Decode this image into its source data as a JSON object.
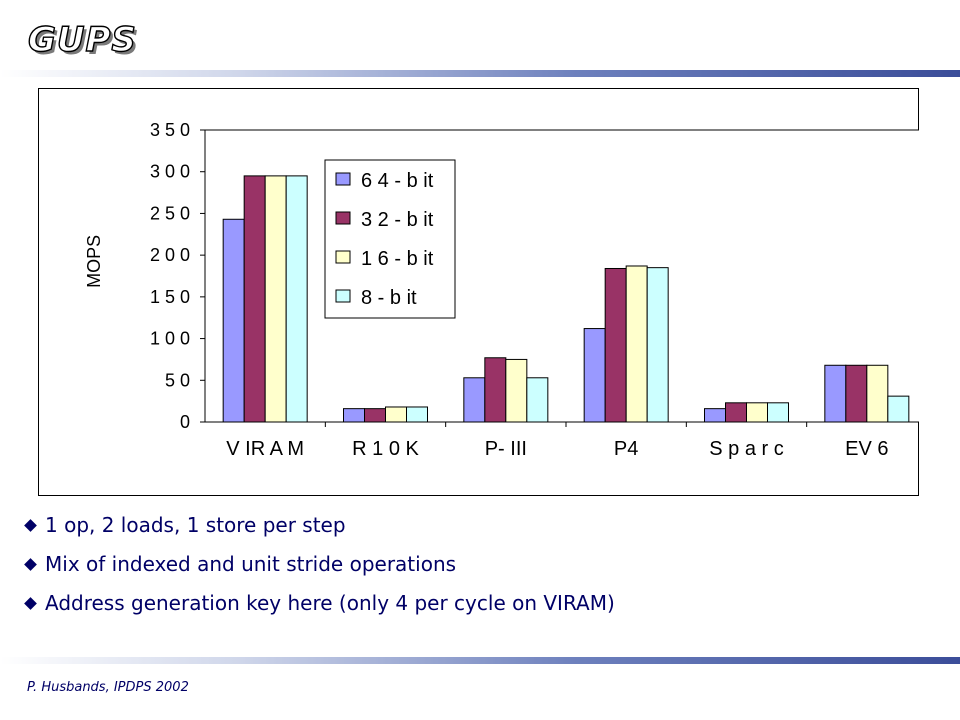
{
  "slide": {
    "title": "GUPS",
    "footer": "P. Husbands, IPDPS 2002",
    "bullets": [
      "1 op, 2 loads, 1 store per step",
      "Mix of indexed and unit stride operations",
      "Address generation key here (only 4 per cycle on VIRAM)"
    ]
  },
  "chart_data": {
    "type": "bar",
    "title": "",
    "xlabel": "",
    "ylabel": "MOPS",
    "ylim": [
      0,
      350
    ],
    "yticks": [
      0,
      50,
      100,
      150,
      200,
      250,
      300,
      350
    ],
    "ytick_labels": [
      "0",
      "5 0",
      "1 0 0",
      "1 5 0",
      "2 0 0",
      "2 5 0",
      "3 0 0",
      "3 5 0"
    ],
    "categories": [
      "V IR A M",
      "R 1 0 K",
      "P- III",
      "P4",
      "S p a r c",
      "EV 6"
    ],
    "series": [
      {
        "name": "6 4 - b it",
        "color": "#9999ff",
        "values": [
          243,
          16,
          53,
          112,
          16,
          68
        ]
      },
      {
        "name": "3 2 - b it",
        "color": "#993366",
        "values": [
          295,
          16,
          77,
          184,
          23,
          68
        ]
      },
      {
        "name": "1 6 - b it",
        "color": "#ffffcc",
        "values": [
          295,
          18,
          75,
          187,
          23,
          68
        ]
      },
      {
        "name": "8 - b it",
        "color": "#ccffff",
        "values": [
          295,
          18,
          53,
          185,
          23,
          31
        ]
      }
    ],
    "grid": false,
    "legend_position": "top-center"
  }
}
